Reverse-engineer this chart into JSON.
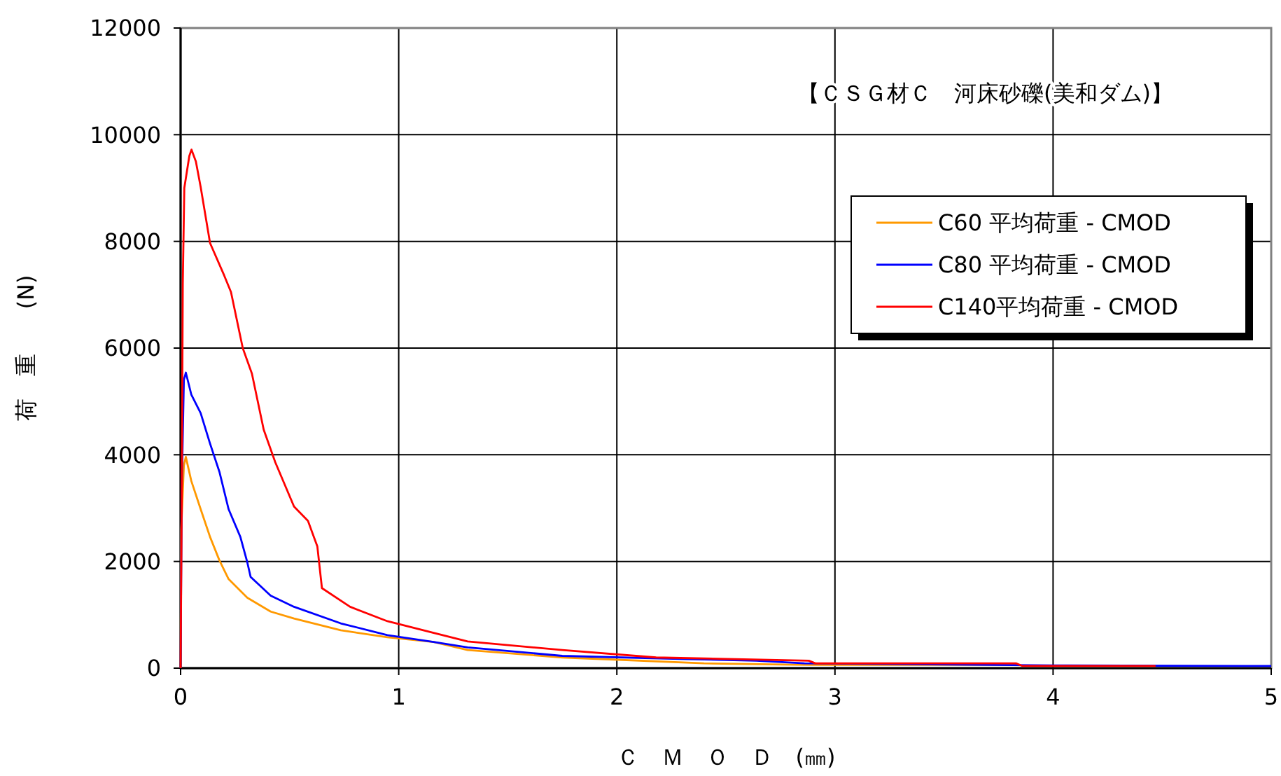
{
  "chart_data": {
    "type": "line",
    "title": "【ＣＳＧ材Ｃ　河床砂礫(美和ダム)】",
    "xlabel": "Ｃ　Ｍ　Ｏ　Ｄ　(㎜)",
    "ylabel": "荷　重　　(N)",
    "xlim": [
      0,
      5
    ],
    "xticks": [
      0,
      1,
      2,
      3,
      4,
      5
    ],
    "ylim": [
      0,
      12000
    ],
    "yticks": [
      0,
      2000,
      4000,
      6000,
      8000,
      10000,
      12000
    ],
    "grid": true,
    "legend": "top right",
    "line_style": "solid",
    "marker": "none",
    "series": [
      {
        "name": "C60  平均荷重 - CMOD",
        "color": "#ff9900",
        "x": [
          0,
          0.003,
          0.015,
          0.024,
          0.049,
          0.092,
          0.135,
          0.178,
          0.22,
          0.306,
          0.413,
          0.52,
          0.734,
          0.948,
          1.16,
          1.316,
          1.75,
          2.4,
          2.88,
          3.83
        ],
        "values": [
          0,
          2600,
          3800,
          3960,
          3510,
          2980,
          2460,
          2020,
          1670,
          1320,
          1060,
          930,
          710,
          580,
          490,
          340,
          200,
          90,
          60,
          60
        ]
      },
      {
        "name": "C80  平均荷重 - CMOD",
        "color": "#0000ff",
        "x": [
          0,
          0.005,
          0.015,
          0.024,
          0.049,
          0.092,
          0.135,
          0.178,
          0.22,
          0.274,
          0.306,
          0.321,
          0.413,
          0.52,
          0.734,
          0.948,
          1.16,
          1.316,
          1.75,
          2.32,
          2.64,
          2.86,
          4.0,
          5.0
        ],
        "values": [
          0,
          3330,
          5400,
          5540,
          5130,
          4780,
          4210,
          3680,
          2980,
          2460,
          1980,
          1710,
          1360,
          1150,
          840,
          620,
          490,
          390,
          230,
          170,
          140,
          90,
          50,
          40
        ]
      },
      {
        "name": "C140平均荷重 - CMOD",
        "color": "#ff0000",
        "x": [
          0,
          0.005,
          0.01,
          0.017,
          0.04,
          0.05,
          0.07,
          0.092,
          0.135,
          0.2,
          0.231,
          0.285,
          0.327,
          0.381,
          0.434,
          0.52,
          0.584,
          0.627,
          0.648,
          0.777,
          0.948,
          1.16,
          1.316,
          1.75,
          2.18,
          2.88,
          2.91,
          3.83,
          3.86,
          4.47
        ],
        "values": [
          0,
          3000,
          7200,
          9000,
          9600,
          9720,
          9500,
          9020,
          7970,
          7360,
          7050,
          6000,
          5520,
          4470,
          3860,
          3030,
          2760,
          2280,
          1500,
          1150,
          880,
          660,
          500,
          340,
          200,
          140,
          90,
          90,
          40,
          40
        ]
      }
    ]
  }
}
